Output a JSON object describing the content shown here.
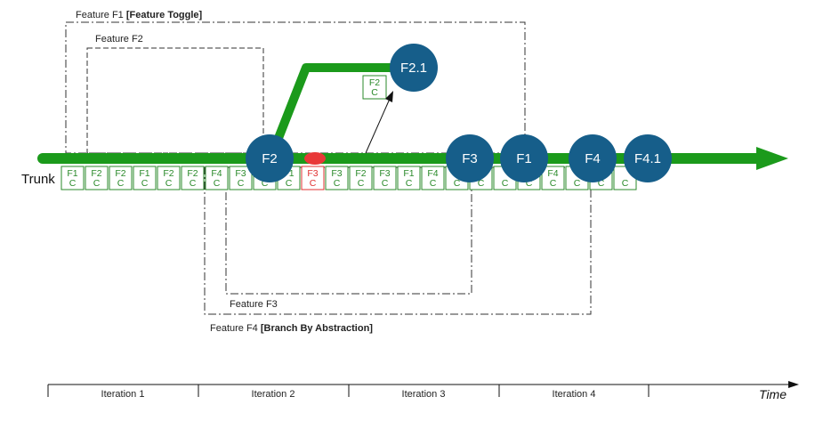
{
  "colors": {
    "trunk": "#1b9a1b",
    "node": "#165e8a",
    "commit": "#2a8a2a",
    "broken": "#e03030"
  },
  "features": {
    "f1": {
      "prefix": "Feature F1 ",
      "bold": "[Feature Toggle]"
    },
    "f2": {
      "label": "Feature F2"
    },
    "f3": {
      "label": "Feature F3"
    },
    "f4": {
      "prefix": "Feature F4 ",
      "bold": "[Branch By Abstraction]"
    }
  },
  "trunk_label": "Trunk",
  "nodes": [
    "F2",
    "F2.1",
    "F3",
    "F1",
    "F4",
    "F4.1"
  ],
  "branch_commit": {
    "top": "F2",
    "bottom": "C"
  },
  "commits": [
    {
      "top": "F1",
      "bottom": "C",
      "broken": false
    },
    {
      "top": "F2",
      "bottom": "C",
      "broken": false
    },
    {
      "top": "F2",
      "bottom": "C",
      "broken": false
    },
    {
      "top": "F1",
      "bottom": "C",
      "broken": false
    },
    {
      "top": "F2",
      "bottom": "C",
      "broken": false
    },
    {
      "top": "F2",
      "bottom": "C",
      "broken": false
    },
    {
      "top": "F4",
      "bottom": "C",
      "broken": false
    },
    {
      "top": "F3",
      "bottom": "C",
      "broken": false
    },
    {
      "top": "",
      "bottom": "C",
      "broken": false
    },
    {
      "top": "F1",
      "bottom": "C",
      "broken": false
    },
    {
      "top": "F3",
      "bottom": "C",
      "broken": true
    },
    {
      "top": "F3",
      "bottom": "C",
      "broken": false
    },
    {
      "top": "F2",
      "bottom": "C",
      "broken": false
    },
    {
      "top": "F3",
      "bottom": "C",
      "broken": false
    },
    {
      "top": "F1",
      "bottom": "C",
      "broken": false
    },
    {
      "top": "F4",
      "bottom": "C",
      "broken": false
    },
    {
      "top": "",
      "bottom": "C",
      "broken": false
    },
    {
      "top": "",
      "bottom": "C",
      "broken": false
    },
    {
      "top": "",
      "bottom": "C",
      "broken": false
    },
    {
      "top": "",
      "bottom": "C",
      "broken": false
    },
    {
      "top": "F4",
      "bottom": "C",
      "broken": false
    },
    {
      "top": "",
      "bottom": "C",
      "broken": false
    },
    {
      "top": "",
      "bottom": "C",
      "broken": false
    },
    {
      "top": "",
      "bottom": "C",
      "broken": false
    }
  ],
  "iterations": [
    "Iteration 1",
    "Iteration 2",
    "Iteration 3",
    "Iteration 4"
  ],
  "time_label": "Time"
}
